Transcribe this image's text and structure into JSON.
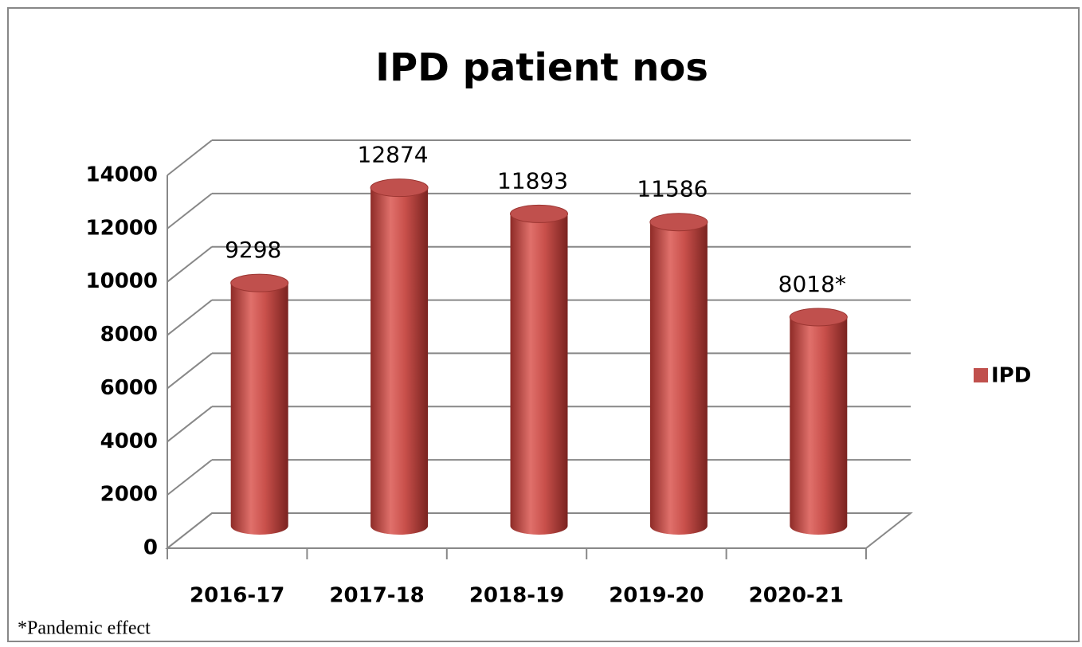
{
  "chart_data": {
    "type": "bar",
    "title": "IPD patient nos",
    "categories": [
      "2016-17",
      "2017-18",
      "2018-19",
      "2019-20",
      "2020-21"
    ],
    "series": [
      {
        "name": "IPD",
        "color": "#c0504d",
        "values": [
          9298,
          12874,
          11893,
          11586,
          8018
        ],
        "value_labels": [
          "9298",
          "12874",
          "11893",
          "11586",
          "8018*"
        ]
      }
    ],
    "ylim": [
      0,
      14000
    ],
    "yticks": [
      0,
      2000,
      4000,
      6000,
      8000,
      10000,
      12000,
      14000
    ],
    "grid": true,
    "legend": "right",
    "footnote": "*Pandemic effect"
  }
}
